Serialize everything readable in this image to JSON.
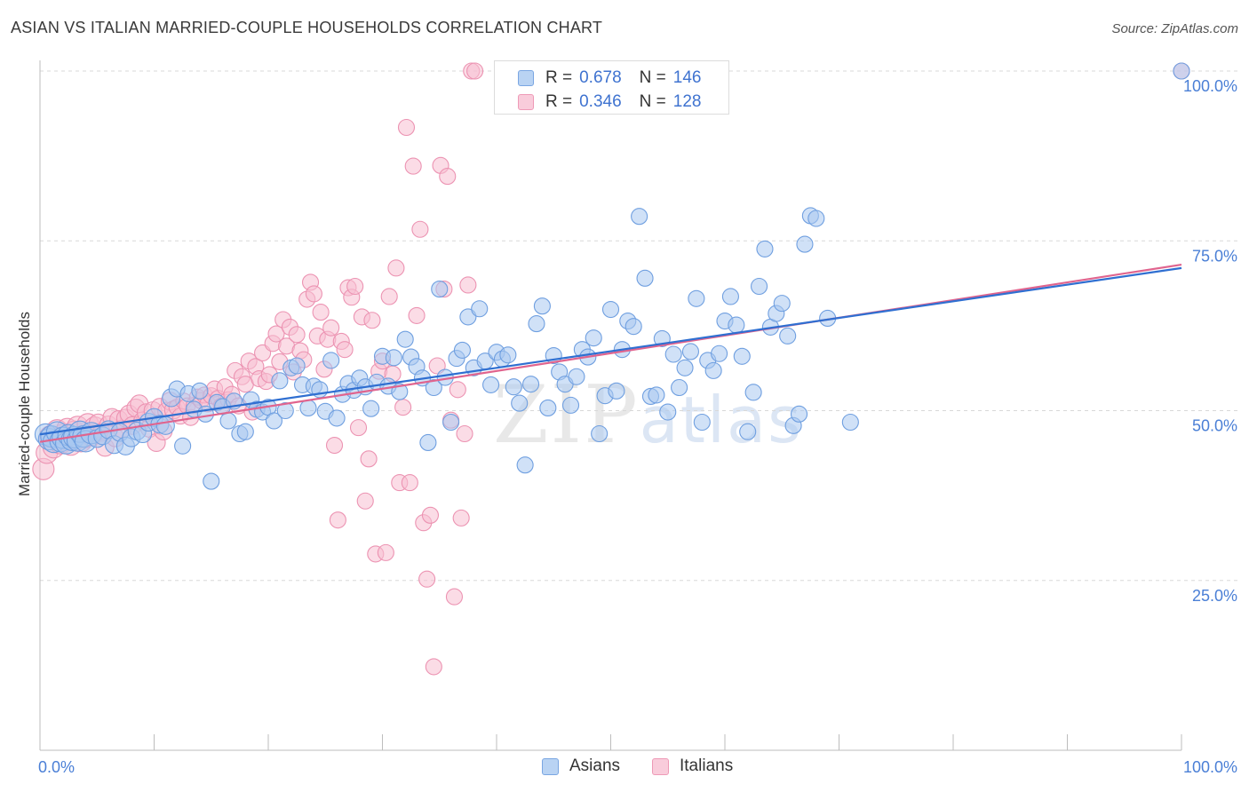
{
  "header": {
    "title": "ASIAN VS ITALIAN MARRIED-COUPLE HOUSEHOLDS CORRELATION CHART",
    "source": "Source: ZipAtlas.com"
  },
  "watermark": {
    "zip": "ZIP",
    "atlas": "atlas"
  },
  "legend_top": {
    "rows": [
      {
        "r_key": "R =",
        "r_value": "0.678",
        "n_key": "N =",
        "n_value": "146"
      },
      {
        "r_key": "R =",
        "r_value": "0.346",
        "n_key": "N =",
        "n_value": "128"
      }
    ]
  },
  "legend_bottom": {
    "items": [
      "Asians",
      "Italians"
    ]
  },
  "colors": {
    "asian_fill": "#a9c8f0",
    "asian_stroke": "#6f9fe0",
    "asian_line": "#2f6fd1",
    "italian_fill": "#f7c0d2",
    "italian_stroke": "#ec93b2",
    "italian_line": "#e0648e",
    "tick_text": "#4a7fd6",
    "grid": "#d8d8d8"
  },
  "chart_data": {
    "type": "scatter",
    "title": "ASIAN VS ITALIAN MARRIED-COUPLE HOUSEHOLDS CORRELATION CHART",
    "xlabel": "",
    "ylabel": "Married-couple Households",
    "xlim": [
      0,
      100
    ],
    "ylim": [
      0,
      101
    ],
    "x_tick_labels": [
      "0.0%",
      "100.0%"
    ],
    "y_ticks": [
      25,
      50,
      75,
      100
    ],
    "y_tick_labels": [
      "25.0%",
      "50.0%",
      "75.0%",
      "100.0%"
    ],
    "grid": true,
    "legend_position": "top-center",
    "series": [
      {
        "name": "Asians",
        "r": 0.678,
        "n": 146,
        "trend": {
          "x": [
            0,
            100
          ],
          "y": [
            46.5,
            71.0
          ]
        },
        "points": [
          [
            0.5,
            46.5
          ],
          [
            0.8,
            45.8
          ],
          [
            1.0,
            46.2
          ],
          [
            1.2,
            45.4
          ],
          [
            1.5,
            46.8
          ],
          [
            1.8,
            45.5
          ],
          [
            2.0,
            46.0
          ],
          [
            2.3,
            45.2
          ],
          [
            2.5,
            46.4
          ],
          [
            2.8,
            45.7
          ],
          [
            3.0,
            46.1
          ],
          [
            3.3,
            45.6
          ],
          [
            3.5,
            46.9
          ],
          [
            3.8,
            46.2
          ],
          [
            4.0,
            45.5
          ],
          [
            4.5,
            46.7
          ],
          [
            5.0,
            45.9
          ],
          [
            5.5,
            46.3
          ],
          [
            6.0,
            47.2
          ],
          [
            6.5,
            45.0
          ],
          [
            7.0,
            46.8
          ],
          [
            7.5,
            44.8
          ],
          [
            8.0,
            46.0
          ],
          [
            8.5,
            47.0
          ],
          [
            9.0,
            46.6
          ],
          [
            9.5,
            48.3
          ],
          [
            10.0,
            49.0
          ],
          [
            10.5,
            48.0
          ],
          [
            11.0,
            47.8
          ],
          [
            11.5,
            51.9
          ],
          [
            12.0,
            53.2
          ],
          [
            12.5,
            44.8
          ],
          [
            13.0,
            52.5
          ],
          [
            13.5,
            50.2
          ],
          [
            14.0,
            52.9
          ],
          [
            14.5,
            49.5
          ],
          [
            15.0,
            39.6
          ],
          [
            15.5,
            51.2
          ],
          [
            16.0,
            50.6
          ],
          [
            16.5,
            48.5
          ],
          [
            17.0,
            51.4
          ],
          [
            17.5,
            46.6
          ],
          [
            18.0,
            46.9
          ],
          [
            18.5,
            51.6
          ],
          [
            19.0,
            50.2
          ],
          [
            19.5,
            49.8
          ],
          [
            20.0,
            50.5
          ],
          [
            20.5,
            48.5
          ],
          [
            21.0,
            54.4
          ],
          [
            21.5,
            50.0
          ],
          [
            22.0,
            56.3
          ],
          [
            22.5,
            56.6
          ],
          [
            23.0,
            53.8
          ],
          [
            23.5,
            50.4
          ],
          [
            24.0,
            53.6
          ],
          [
            24.5,
            53.1
          ],
          [
            25.0,
            49.9
          ],
          [
            25.5,
            57.4
          ],
          [
            26.0,
            48.9
          ],
          [
            26.5,
            52.4
          ],
          [
            27.0,
            54.0
          ],
          [
            27.5,
            53.0
          ],
          [
            28.0,
            54.8
          ],
          [
            28.5,
            53.5
          ],
          [
            29.0,
            50.3
          ],
          [
            29.5,
            54.2
          ],
          [
            30.0,
            58.0
          ],
          [
            30.5,
            53.6
          ],
          [
            31.0,
            57.8
          ],
          [
            31.5,
            52.8
          ],
          [
            32.0,
            60.5
          ],
          [
            32.5,
            57.9
          ],
          [
            33.0,
            56.5
          ],
          [
            33.5,
            54.8
          ],
          [
            34.0,
            45.3
          ],
          [
            34.5,
            53.4
          ],
          [
            35.0,
            67.9
          ],
          [
            35.5,
            54.9
          ],
          [
            36.0,
            48.3
          ],
          [
            36.5,
            57.7
          ],
          [
            37.0,
            58.9
          ],
          [
            37.5,
            63.8
          ],
          [
            38.0,
            56.3
          ],
          [
            38.5,
            65.0
          ],
          [
            39.0,
            57.3
          ],
          [
            39.5,
            53.8
          ],
          [
            40.0,
            58.6
          ],
          [
            40.5,
            57.6
          ],
          [
            41.0,
            58.2
          ],
          [
            41.5,
            53.5
          ],
          [
            42.0,
            51.1
          ],
          [
            42.5,
            42.0
          ],
          [
            43.0,
            53.9
          ],
          [
            43.5,
            62.8
          ],
          [
            44.0,
            65.4
          ],
          [
            44.5,
            50.4
          ],
          [
            45.0,
            58.1
          ],
          [
            45.5,
            55.7
          ],
          [
            46.0,
            53.9
          ],
          [
            46.5,
            50.8
          ],
          [
            47.0,
            55.0
          ],
          [
            47.5,
            59.0
          ],
          [
            48.0,
            57.9
          ],
          [
            48.5,
            60.7
          ],
          [
            49.0,
            46.6
          ],
          [
            49.5,
            52.2
          ],
          [
            50.0,
            64.9
          ],
          [
            50.5,
            52.9
          ],
          [
            51.0,
            59.0
          ],
          [
            51.5,
            63.2
          ],
          [
            52.0,
            62.4
          ],
          [
            52.5,
            78.6
          ],
          [
            53.0,
            69.5
          ],
          [
            53.5,
            52.1
          ],
          [
            54.0,
            52.3
          ],
          [
            54.5,
            60.6
          ],
          [
            55.0,
            49.8
          ],
          [
            55.5,
            58.3
          ],
          [
            56.0,
            53.4
          ],
          [
            56.5,
            56.3
          ],
          [
            57.0,
            58.7
          ],
          [
            57.5,
            66.5
          ],
          [
            58.0,
            48.3
          ],
          [
            58.5,
            57.4
          ],
          [
            59.0,
            55.9
          ],
          [
            59.5,
            58.4
          ],
          [
            60.0,
            63.2
          ],
          [
            60.5,
            66.8
          ],
          [
            61.0,
            62.6
          ],
          [
            61.5,
            58.0
          ],
          [
            62.0,
            46.9
          ],
          [
            62.5,
            52.7
          ],
          [
            63.0,
            68.3
          ],
          [
            63.5,
            73.8
          ],
          [
            64.0,
            62.3
          ],
          [
            64.5,
            64.3
          ],
          [
            65.0,
            65.8
          ],
          [
            65.5,
            61.0
          ],
          [
            66.0,
            47.8
          ],
          [
            66.5,
            49.5
          ],
          [
            67.0,
            74.5
          ],
          [
            67.5,
            78.7
          ],
          [
            68.0,
            78.3
          ],
          [
            69.0,
            63.6
          ],
          [
            71.0,
            48.3
          ],
          [
            100.0,
            100.0
          ]
        ]
      },
      {
        "name": "Italians",
        "r": 0.346,
        "n": 128,
        "trend": {
          "x": [
            0,
            100
          ],
          "y": [
            45.4,
            71.5
          ]
        },
        "points": [
          [
            0.3,
            41.4
          ],
          [
            0.6,
            43.8
          ],
          [
            0.9,
            46.2
          ],
          [
            1.2,
            44.6
          ],
          [
            1.5,
            47.1
          ],
          [
            1.8,
            45.2
          ],
          [
            2.1,
            46.5
          ],
          [
            2.4,
            47.3
          ],
          [
            2.7,
            45.0
          ],
          [
            3.0,
            46.9
          ],
          [
            3.3,
            47.6
          ],
          [
            3.6,
            45.5
          ],
          [
            3.9,
            46.1
          ],
          [
            4.2,
            48.0
          ],
          [
            4.5,
            46.4
          ],
          [
            4.8,
            47.5
          ],
          [
            5.1,
            48.2
          ],
          [
            5.4,
            46.8
          ],
          [
            5.7,
            44.6
          ],
          [
            6.0,
            47.9
          ],
          [
            6.3,
            49.0
          ],
          [
            6.6,
            46.0
          ],
          [
            6.9,
            48.7
          ],
          [
            7.2,
            47.3
          ],
          [
            7.5,
            48.9
          ],
          [
            7.8,
            49.5
          ],
          [
            8.1,
            47.8
          ],
          [
            8.4,
            50.4
          ],
          [
            8.7,
            51.0
          ],
          [
            9.0,
            48.5
          ],
          [
            9.3,
            49.7
          ],
          [
            9.6,
            47.4
          ],
          [
            9.9,
            50.0
          ],
          [
            10.2,
            45.3
          ],
          [
            10.5,
            50.5
          ],
          [
            10.8,
            47.0
          ],
          [
            11.1,
            49.9
          ],
          [
            11.4,
            51.4
          ],
          [
            11.7,
            50.1
          ],
          [
            12.0,
            50.5
          ],
          [
            12.3,
            49.2
          ],
          [
            12.6,
            51.4
          ],
          [
            12.9,
            50.7
          ],
          [
            13.2,
            49.0
          ],
          [
            13.5,
            50.8
          ],
          [
            13.8,
            52.0
          ],
          [
            14.1,
            51.5
          ],
          [
            14.4,
            52.3
          ],
          [
            14.7,
            51.0
          ],
          [
            15.0,
            52.2
          ],
          [
            15.3,
            53.2
          ],
          [
            15.6,
            51.8
          ],
          [
            15.9,
            50.7
          ],
          [
            16.2,
            53.5
          ],
          [
            16.5,
            51.6
          ],
          [
            16.8,
            52.4
          ],
          [
            17.1,
            55.9
          ],
          [
            17.4,
            50.7
          ],
          [
            17.7,
            55.0
          ],
          [
            18.0,
            53.9
          ],
          [
            18.3,
            57.3
          ],
          [
            18.6,
            49.8
          ],
          [
            18.9,
            56.5
          ],
          [
            19.2,
            54.7
          ],
          [
            19.5,
            58.5
          ],
          [
            19.8,
            54.3
          ],
          [
            20.1,
            55.3
          ],
          [
            20.4,
            59.9
          ],
          [
            20.7,
            61.3
          ],
          [
            21.0,
            57.2
          ],
          [
            21.3,
            63.4
          ],
          [
            21.6,
            59.5
          ],
          [
            21.9,
            62.3
          ],
          [
            22.2,
            55.7
          ],
          [
            22.5,
            61.2
          ],
          [
            22.8,
            58.8
          ],
          [
            23.1,
            57.5
          ],
          [
            23.4,
            66.4
          ],
          [
            23.7,
            68.9
          ],
          [
            24.0,
            67.2
          ],
          [
            24.3,
            61.0
          ],
          [
            24.6,
            64.5
          ],
          [
            24.9,
            56.1
          ],
          [
            25.2,
            60.5
          ],
          [
            25.5,
            62.2
          ],
          [
            25.8,
            44.9
          ],
          [
            26.1,
            33.9
          ],
          [
            26.4,
            60.2
          ],
          [
            26.7,
            59.0
          ],
          [
            27.0,
            68.1
          ],
          [
            27.3,
            66.7
          ],
          [
            27.6,
            68.3
          ],
          [
            27.9,
            47.5
          ],
          [
            28.2,
            63.8
          ],
          [
            28.5,
            36.7
          ],
          [
            28.8,
            42.9
          ],
          [
            29.1,
            63.3
          ],
          [
            29.4,
            28.9
          ],
          [
            29.7,
            55.8
          ],
          [
            30.0,
            57.3
          ],
          [
            30.3,
            29.1
          ],
          [
            30.6,
            66.8
          ],
          [
            30.9,
            55.4
          ],
          [
            31.2,
            71.0
          ],
          [
            31.5,
            39.4
          ],
          [
            31.8,
            50.5
          ],
          [
            32.1,
            91.7
          ],
          [
            32.4,
            39.4
          ],
          [
            32.7,
            86.0
          ],
          [
            33.0,
            64.0
          ],
          [
            33.3,
            76.7
          ],
          [
            33.6,
            33.5
          ],
          [
            33.9,
            25.2
          ],
          [
            34.2,
            34.6
          ],
          [
            34.5,
            12.3
          ],
          [
            34.8,
            56.6
          ],
          [
            35.1,
            86.1
          ],
          [
            35.4,
            67.9
          ],
          [
            35.7,
            84.5
          ],
          [
            36.0,
            48.6
          ],
          [
            36.3,
            22.6
          ],
          [
            36.6,
            53.1
          ],
          [
            36.9,
            34.2
          ],
          [
            37.2,
            46.6
          ],
          [
            37.5,
            68.5
          ],
          [
            37.8,
            100.0
          ],
          [
            38.1,
            100.0
          ],
          [
            100.0,
            100.0
          ]
        ]
      }
    ]
  }
}
